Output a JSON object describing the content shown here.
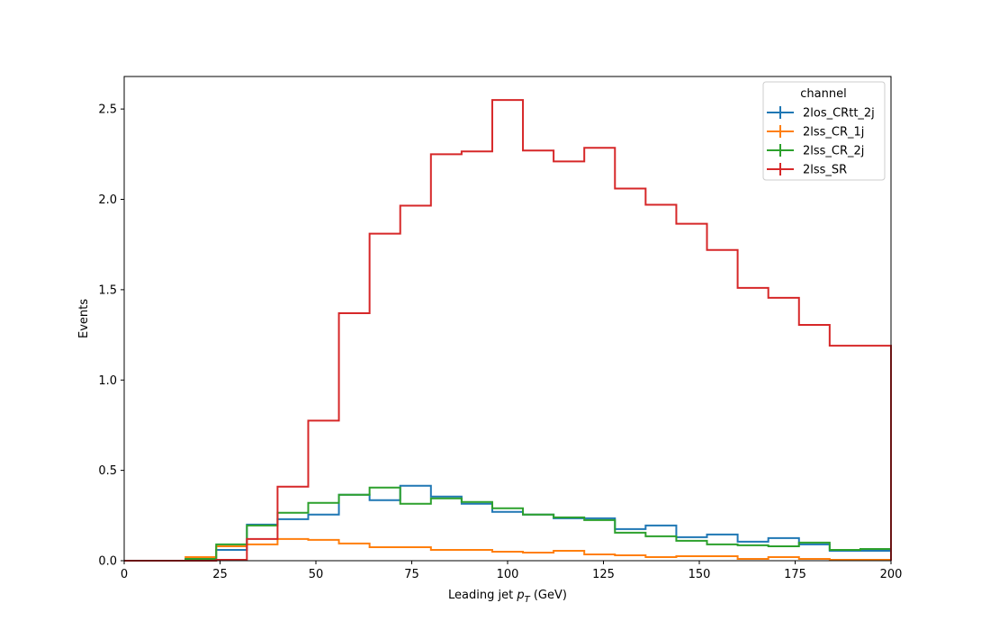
{
  "chart_data": {
    "type": "step",
    "xlabel_prefix": "Leading jet  ",
    "xlabel_var": "p",
    "xlabel_sub": "T",
    "xlabel_suffix": " (GeV)",
    "ylabel": "Events",
    "xlim": [
      0,
      200
    ],
    "ylim": [
      0,
      2.68
    ],
    "xticks": [
      0,
      25,
      50,
      75,
      100,
      125,
      150,
      175,
      200
    ],
    "yticks": [
      0.0,
      0.5,
      1.0,
      1.5,
      2.0,
      2.5
    ],
    "ytick_labels": [
      "0.0",
      "0.5",
      "1.0",
      "1.5",
      "2.0",
      "2.5"
    ],
    "grid": false,
    "legend_title": "channel",
    "legend_position": "top-right",
    "bin_edges": [
      0,
      8,
      16,
      24,
      32,
      40,
      48,
      56,
      64,
      72,
      80,
      88,
      96,
      104,
      112,
      120,
      128,
      136,
      144,
      152,
      160,
      168,
      176,
      184,
      192,
      200
    ],
    "series": [
      {
        "name": "2los_CRtt_2j",
        "color": "#1f77b4",
        "values": [
          0,
          0,
          0.005,
          0.06,
          0.2,
          0.23,
          0.255,
          0.365,
          0.335,
          0.415,
          0.355,
          0.315,
          0.27,
          0.255,
          0.235,
          0.235,
          0.175,
          0.195,
          0.13,
          0.145,
          0.105,
          0.125,
          0.09,
          0.055,
          0.055
        ]
      },
      {
        "name": "2lss_CR_1j",
        "color": "#ff7f0e",
        "values": [
          0,
          0,
          0.02,
          0.08,
          0.09,
          0.12,
          0.115,
          0.095,
          0.075,
          0.075,
          0.06,
          0.06,
          0.05,
          0.045,
          0.055,
          0.035,
          0.03,
          0.02,
          0.025,
          0.025,
          0.01,
          0.02,
          0.01,
          0.005,
          0.005
        ]
      },
      {
        "name": "2lss_CR_2j",
        "color": "#2ca02c",
        "values": [
          0,
          0,
          0.01,
          0.09,
          0.195,
          0.265,
          0.32,
          0.365,
          0.405,
          0.315,
          0.345,
          0.325,
          0.29,
          0.255,
          0.24,
          0.225,
          0.155,
          0.135,
          0.11,
          0.09,
          0.085,
          0.08,
          0.1,
          0.06,
          0.065
        ]
      },
      {
        "name": "2lss_SR",
        "color": "#d62728",
        "values": [
          0,
          0,
          0,
          0.005,
          0.12,
          0.41,
          0.775,
          1.37,
          1.81,
          1.965,
          2.25,
          2.265,
          2.55,
          2.27,
          2.21,
          2.285,
          2.06,
          1.97,
          1.865,
          1.72,
          1.51,
          1.455,
          1.305,
          1.19,
          1.19
        ]
      }
    ]
  }
}
